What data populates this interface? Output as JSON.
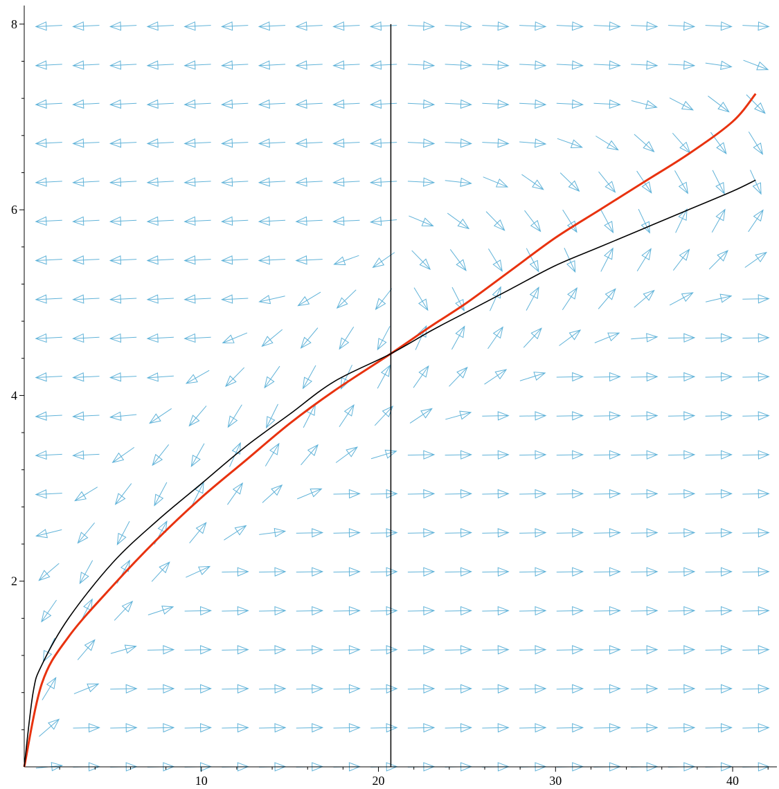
{
  "chart_data": {
    "type": "direction-field",
    "title": "",
    "xlabel": "",
    "ylabel": "",
    "xlim": [
      0,
      42.5
    ],
    "ylim": [
      0,
      8.2
    ],
    "grid": false,
    "x_ticks": [
      10,
      20,
      30,
      40
    ],
    "y_ticks": [
      2,
      4,
      6,
      8
    ],
    "x_tick_labels": [
      "10",
      "20",
      "30",
      "40"
    ],
    "y_tick_labels": [
      "2",
      "4",
      "6",
      "8"
    ],
    "field": {
      "description_equation": "dy/dx = y^2/(4x) - 1/4 / (y^2-x)",
      "x_start": 1.4,
      "x_step": 2.1,
      "x_count": 20,
      "y_start": 0,
      "y_step": 0.42,
      "y_count": 20,
      "color": "#5fb2d8"
    },
    "series": [
      {
        "color": "#e8320f",
        "points": [
          [
            0,
            0
          ],
          [
            1,
            0.9
          ],
          [
            2.5,
            1.4
          ],
          [
            5,
            1.95
          ],
          [
            7.5,
            2.45
          ],
          [
            10,
            2.9
          ],
          [
            12.5,
            3.3
          ],
          [
            15,
            3.7
          ],
          [
            17.5,
            4.05
          ],
          [
            20.7,
            4.45
          ],
          [
            23,
            4.75
          ],
          [
            25,
            5.0
          ],
          [
            27.5,
            5.35
          ],
          [
            30,
            5.7
          ],
          [
            32.5,
            6.0
          ],
          [
            35,
            6.3
          ],
          [
            37.5,
            6.6
          ],
          [
            40,
            6.95
          ],
          [
            41.3,
            7.25
          ]
        ]
      },
      {
        "color": "#000000",
        "points": [
          [
            0,
            0
          ],
          [
            0.5,
            0.8
          ],
          [
            1,
            1.1
          ],
          [
            2.5,
            1.6
          ],
          [
            5,
            2.2
          ],
          [
            7.5,
            2.65
          ],
          [
            10,
            3.05
          ],
          [
            12.5,
            3.45
          ],
          [
            15,
            3.8
          ],
          [
            17.5,
            4.15
          ],
          [
            20.7,
            4.45
          ],
          [
            23,
            4.7
          ],
          [
            25,
            4.9
          ],
          [
            27.5,
            5.15
          ],
          [
            30,
            5.4
          ],
          [
            32.5,
            5.6
          ],
          [
            35,
            5.8
          ],
          [
            37.5,
            6.0
          ],
          [
            40,
            6.2
          ],
          [
            41.3,
            6.32
          ]
        ]
      }
    ],
    "vertical_line": {
      "x": 20.7,
      "y_from": 0,
      "y_to": 8.0,
      "color": "#000000"
    }
  }
}
